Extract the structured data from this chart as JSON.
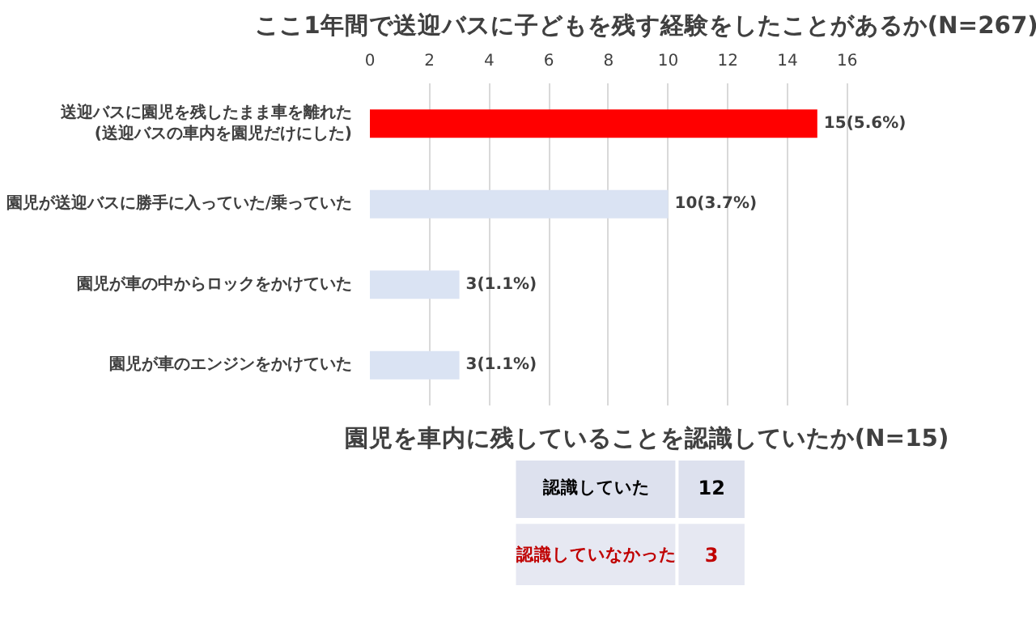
{
  "chart_data": [
    {
      "type": "bar",
      "orientation": "horizontal",
      "title": "ここ1年間で送迎バスに子どもを残す経験をしたことがあるか(N=267)",
      "categories": [
        "送迎バスに園児を残したまま車を離れた\n(送迎バスの車内を園児だけにした)",
        "園児が送迎バスに勝手に入っていた/乗っていた",
        "園児が車の中からロックをかけていた",
        "園児が車のエンジンをかけていた"
      ],
      "values": [
        15,
        10,
        3,
        3
      ],
      "colors": [
        "#ff0000",
        "#dae3f3",
        "#dae3f3",
        "#dae3f3"
      ],
      "value_labels": [
        "15(5.6%)",
        "10(3.7%)",
        "3(1.1%)",
        "3(1.1%)"
      ],
      "xlim": [
        0,
        16
      ],
      "xticks": [
        0,
        2,
        4,
        6,
        8,
        10,
        12,
        14,
        16
      ],
      "grid": "x"
    },
    {
      "type": "other",
      "title": "園児を車内に残していることを認識していたか(N=15)",
      "categories": [
        "認識していた",
        "認識していなかった"
      ],
      "values": [
        12,
        3
      ],
      "data_labels": true,
      "colors": [
        "#dde1ee",
        "#e6e8f2"
      ]
    }
  ]
}
